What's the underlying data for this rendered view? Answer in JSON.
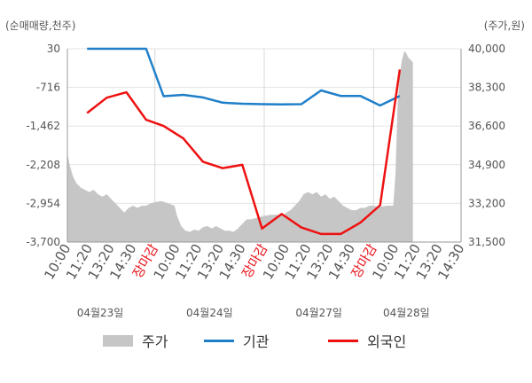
{
  "chart_data": {
    "type": "line",
    "left_axis_title": "(순매매량,천주)",
    "right_axis_title": "(주가,원)",
    "y_left": {
      "ticks": [
        "30",
        "-716",
        "-1,462",
        "-2,208",
        "-2,954",
        "-3,700"
      ],
      "min": -3700,
      "max": 30
    },
    "y_right": {
      "ticks": [
        "40,000",
        "38,300",
        "36,600",
        "34,900",
        "33,200",
        "31,500"
      ],
      "min": 31500,
      "max": 40000
    },
    "x_tick_labels": [
      {
        "label": "10:00",
        "holiday": false
      },
      {
        "label": "11:20",
        "holiday": false
      },
      {
        "label": "13:20",
        "holiday": false
      },
      {
        "label": "14:30",
        "holiday": false
      },
      {
        "label": "장마감",
        "holiday": true
      },
      {
        "label": "10:00",
        "holiday": false
      },
      {
        "label": "11:20",
        "holiday": false
      },
      {
        "label": "13:20",
        "holiday": false
      },
      {
        "label": "14:30",
        "holiday": false
      },
      {
        "label": "장마감",
        "holiday": true
      },
      {
        "label": "10:00",
        "holiday": false
      },
      {
        "label": "11:20",
        "holiday": false
      },
      {
        "label": "13:20",
        "holiday": false
      },
      {
        "label": "14:30",
        "holiday": false
      },
      {
        "label": "장마감",
        "holiday": true
      },
      {
        "label": "10:00",
        "holiday": false
      },
      {
        "label": "11:20",
        "holiday": false
      },
      {
        "label": "13:20",
        "holiday": false
      },
      {
        "label": "14:30",
        "holiday": false
      }
    ],
    "dates": [
      {
        "label": "04월23일",
        "tick_index": 1.5
      },
      {
        "label": "04월24일",
        "tick_index": 6.5
      },
      {
        "label": "04월27일",
        "tick_index": 11.5
      },
      {
        "label": "04월28일",
        "tick_index": 15.5
      }
    ],
    "series": [
      {
        "name": "주가",
        "axis": "right",
        "color": "#c6c6c6",
        "type": "area",
        "points": [
          [
            0,
            35400
          ],
          [
            0.1,
            34900
          ],
          [
            0.25,
            34400
          ],
          [
            0.4,
            34100
          ],
          [
            0.6,
            33900
          ],
          [
            0.8,
            33800
          ],
          [
            1.0,
            33700
          ],
          [
            1.2,
            33800
          ],
          [
            1.4,
            33600
          ],
          [
            1.6,
            33500
          ],
          [
            1.8,
            33600
          ],
          [
            2.0,
            33400
          ],
          [
            2.2,
            33200
          ],
          [
            2.4,
            33000
          ],
          [
            2.6,
            32800
          ],
          [
            2.8,
            33000
          ],
          [
            3.0,
            33100
          ],
          [
            3.2,
            33000
          ],
          [
            3.4,
            33100
          ],
          [
            3.6,
            33100
          ],
          [
            3.8,
            33200
          ],
          [
            4.0,
            33250
          ],
          [
            4.3,
            33300
          ],
          [
            4.6,
            33200
          ],
          [
            4.9,
            33100
          ],
          [
            5.0,
            32700
          ],
          [
            5.2,
            32200
          ],
          [
            5.4,
            32000
          ],
          [
            5.6,
            31950
          ],
          [
            5.8,
            32050
          ],
          [
            6.0,
            32000
          ],
          [
            6.2,
            32150
          ],
          [
            6.4,
            32200
          ],
          [
            6.6,
            32100
          ],
          [
            6.8,
            32200
          ],
          [
            7.0,
            32100
          ],
          [
            7.2,
            32000
          ],
          [
            7.4,
            32000
          ],
          [
            7.6,
            31950
          ],
          [
            7.8,
            32100
          ],
          [
            8.0,
            32300
          ],
          [
            8.2,
            32500
          ],
          [
            8.4,
            32500
          ],
          [
            8.6,
            32550
          ],
          [
            8.8,
            32600
          ],
          [
            9.0,
            32650
          ],
          [
            9.3,
            32700
          ],
          [
            9.6,
            32700
          ],
          [
            9.9,
            32650
          ],
          [
            10.0,
            32800
          ],
          [
            10.2,
            32900
          ],
          [
            10.4,
            33100
          ],
          [
            10.6,
            33300
          ],
          [
            10.8,
            33600
          ],
          [
            11.0,
            33700
          ],
          [
            11.2,
            33600
          ],
          [
            11.4,
            33700
          ],
          [
            11.6,
            33500
          ],
          [
            11.8,
            33600
          ],
          [
            12.0,
            33400
          ],
          [
            12.2,
            33500
          ],
          [
            12.4,
            33300
          ],
          [
            12.6,
            33100
          ],
          [
            12.8,
            33000
          ],
          [
            13.0,
            32900
          ],
          [
            13.2,
            32900
          ],
          [
            13.4,
            33000
          ],
          [
            13.6,
            33000
          ],
          [
            13.8,
            33100
          ],
          [
            14.0,
            33100
          ],
          [
            14.3,
            33050
          ],
          [
            14.6,
            33100
          ],
          [
            14.9,
            33100
          ],
          [
            15.0,
            34500
          ],
          [
            15.1,
            37600
          ],
          [
            15.2,
            38900
          ],
          [
            15.3,
            39500
          ],
          [
            15.4,
            39900
          ],
          [
            15.5,
            39800
          ],
          [
            15.6,
            39600
          ],
          [
            15.7,
            39500
          ],
          [
            15.8,
            39400
          ]
        ]
      },
      {
        "name": "기관",
        "axis": "left",
        "color": "#1f7fc9",
        "type": "line",
        "points": [
          [
            0.9,
            30
          ],
          [
            1.8,
            30
          ],
          [
            2.7,
            30
          ],
          [
            3.6,
            30
          ],
          [
            4.4,
            -885
          ],
          [
            5.3,
            -860
          ],
          [
            6.2,
            -910
          ],
          [
            7.1,
            -1010
          ],
          [
            8.0,
            -1030
          ],
          [
            8.9,
            -1040
          ],
          [
            9.8,
            -1045
          ],
          [
            10.7,
            -1040
          ],
          [
            11.6,
            -775
          ],
          [
            12.5,
            -880
          ],
          [
            13.4,
            -880
          ],
          [
            14.3,
            -1065
          ],
          [
            15.2,
            -880
          ]
        ]
      },
      {
        "name": "외국인",
        "axis": "left",
        "color": "#ee1111",
        "type": "line",
        "points": [
          [
            0.9,
            -1210
          ],
          [
            1.8,
            -915
          ],
          [
            2.7,
            -810
          ],
          [
            3.6,
            -1340
          ],
          [
            4.4,
            -1460
          ],
          [
            5.3,
            -1700
          ],
          [
            6.2,
            -2150
          ],
          [
            7.1,
            -2275
          ],
          [
            8.0,
            -2210
          ],
          [
            8.9,
            -3440
          ],
          [
            9.8,
            -3160
          ],
          [
            10.7,
            -3420
          ],
          [
            11.6,
            -3545
          ],
          [
            12.5,
            -3545
          ],
          [
            13.4,
            -3325
          ],
          [
            14.3,
            -2990
          ],
          [
            15.2,
            -370
          ]
        ]
      }
    ],
    "legend": [
      "주가",
      "기관",
      "외국인"
    ],
    "legend_position": "bottom",
    "grid": true
  }
}
